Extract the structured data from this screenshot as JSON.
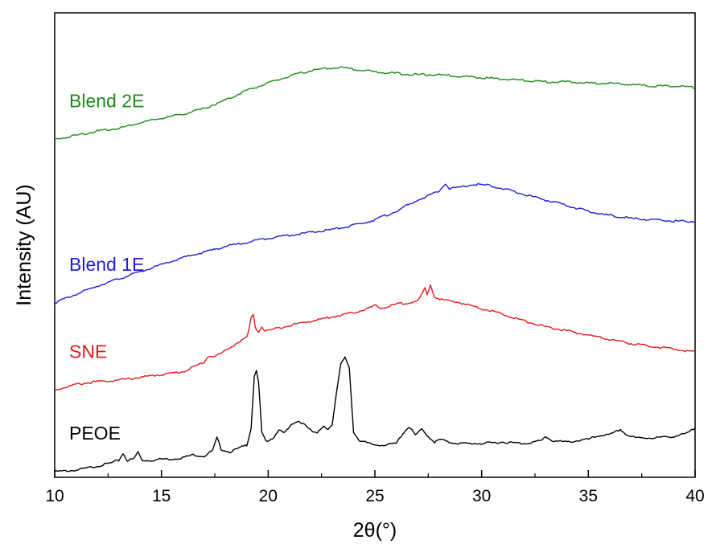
{
  "chart_data": {
    "type": "line",
    "title": "",
    "xlabel": "2θ(°)",
    "ylabel": "Intensity (AU)",
    "xlim": [
      10,
      40
    ],
    "xticks": [
      10,
      15,
      20,
      25,
      30,
      35,
      40
    ],
    "yticks_shown": false,
    "grid": false,
    "legend": "labels placed above each curve on the left",
    "series": [
      {
        "name": "PEOE",
        "color": "#000000",
        "points": [
          [
            10,
            0.04
          ],
          [
            11,
            0.05
          ],
          [
            12,
            0.08
          ],
          [
            12.6,
            0.1
          ],
          [
            13,
            0.12
          ],
          [
            13.2,
            0.17
          ],
          [
            13.4,
            0.12
          ],
          [
            13.7,
            0.13
          ],
          [
            13.9,
            0.18
          ],
          [
            14.1,
            0.12
          ],
          [
            14.5,
            0.12
          ],
          [
            15,
            0.13
          ],
          [
            15.5,
            0.13
          ],
          [
            16,
            0.14
          ],
          [
            16.5,
            0.16
          ],
          [
            17,
            0.15
          ],
          [
            17.4,
            0.19
          ],
          [
            17.6,
            0.28
          ],
          [
            17.8,
            0.2
          ],
          [
            18.2,
            0.18
          ],
          [
            18.7,
            0.21
          ],
          [
            19.0,
            0.23
          ],
          [
            19.2,
            0.35
          ],
          [
            19.35,
            0.72
          ],
          [
            19.45,
            0.76
          ],
          [
            19.55,
            0.68
          ],
          [
            19.7,
            0.32
          ],
          [
            19.9,
            0.25
          ],
          [
            20.2,
            0.27
          ],
          [
            20.5,
            0.34
          ],
          [
            20.8,
            0.32
          ],
          [
            21.1,
            0.37
          ],
          [
            21.4,
            0.4
          ],
          [
            21.7,
            0.38
          ],
          [
            22.0,
            0.33
          ],
          [
            22.3,
            0.31
          ],
          [
            22.6,
            0.37
          ],
          [
            22.8,
            0.34
          ],
          [
            23.0,
            0.38
          ],
          [
            23.2,
            0.6
          ],
          [
            23.4,
            0.8
          ],
          [
            23.6,
            0.85
          ],
          [
            23.8,
            0.78
          ],
          [
            24.0,
            0.32
          ],
          [
            24.3,
            0.26
          ],
          [
            24.7,
            0.24
          ],
          [
            25,
            0.23
          ],
          [
            25.5,
            0.23
          ],
          [
            26,
            0.24
          ],
          [
            26.3,
            0.31
          ],
          [
            26.6,
            0.36
          ],
          [
            26.9,
            0.3
          ],
          [
            27.2,
            0.34
          ],
          [
            27.5,
            0.29
          ],
          [
            27.8,
            0.25
          ],
          [
            28.1,
            0.27
          ],
          [
            28.4,
            0.25
          ],
          [
            29,
            0.24
          ],
          [
            30,
            0.24
          ],
          [
            31,
            0.25
          ],
          [
            32,
            0.24
          ],
          [
            32.8,
            0.26
          ],
          [
            33,
            0.29
          ],
          [
            33.3,
            0.26
          ],
          [
            34,
            0.25
          ],
          [
            35,
            0.27
          ],
          [
            35.6,
            0.3
          ],
          [
            36.0,
            0.3
          ],
          [
            36.5,
            0.34
          ],
          [
            36.8,
            0.3
          ],
          [
            37.2,
            0.28
          ],
          [
            38,
            0.28
          ],
          [
            39,
            0.29
          ],
          [
            39.6,
            0.31
          ],
          [
            40,
            0.35
          ]
        ]
      },
      {
        "name": "SNE",
        "color": "#e41a1c",
        "points": [
          [
            10,
            0.62
          ],
          [
            11,
            0.66
          ],
          [
            12,
            0.68
          ],
          [
            13,
            0.69
          ],
          [
            14,
            0.71
          ],
          [
            15,
            0.73
          ],
          [
            16,
            0.75
          ],
          [
            16.6,
            0.79
          ],
          [
            17.0,
            0.82
          ],
          [
            17.2,
            0.86
          ],
          [
            17.5,
            0.86
          ],
          [
            17.8,
            0.88
          ],
          [
            18.2,
            0.92
          ],
          [
            18.6,
            0.96
          ],
          [
            19.0,
            0.99
          ],
          [
            19.1,
            1.05
          ],
          [
            19.2,
            1.13
          ],
          [
            19.3,
            1.15
          ],
          [
            19.4,
            1.07
          ],
          [
            19.55,
            1.03
          ],
          [
            19.7,
            1.07
          ],
          [
            19.85,
            1.04
          ],
          [
            20.2,
            1.05
          ],
          [
            21,
            1.08
          ],
          [
            22,
            1.11
          ],
          [
            23,
            1.14
          ],
          [
            24,
            1.17
          ],
          [
            24.7,
            1.2
          ],
          [
            25.0,
            1.22
          ],
          [
            25.3,
            1.2
          ],
          [
            26,
            1.23
          ],
          [
            27,
            1.25
          ],
          [
            27.2,
            1.3
          ],
          [
            27.35,
            1.34
          ],
          [
            27.45,
            1.29
          ],
          [
            27.6,
            1.37
          ],
          [
            27.8,
            1.28
          ],
          [
            28.2,
            1.26
          ],
          [
            29,
            1.24
          ],
          [
            30,
            1.2
          ],
          [
            31,
            1.16
          ],
          [
            32,
            1.11
          ],
          [
            33,
            1.07
          ],
          [
            34,
            1.04
          ],
          [
            35,
            1.01
          ],
          [
            36,
            0.98
          ],
          [
            37,
            0.95
          ],
          [
            38,
            0.93
          ],
          [
            39,
            0.91
          ],
          [
            40,
            0.89
          ]
        ]
      },
      {
        "name": "Blend 1E",
        "color": "#1f1fd8",
        "points": [
          [
            10,
            1.24
          ],
          [
            11,
            1.3
          ],
          [
            12,
            1.36
          ],
          [
            13,
            1.41
          ],
          [
            14,
            1.46
          ],
          [
            15,
            1.51
          ],
          [
            16,
            1.56
          ],
          [
            17,
            1.6
          ],
          [
            18,
            1.64
          ],
          [
            19,
            1.67
          ],
          [
            20,
            1.7
          ],
          [
            21,
            1.72
          ],
          [
            22,
            1.74
          ],
          [
            23,
            1.76
          ],
          [
            24,
            1.79
          ],
          [
            25,
            1.83
          ],
          [
            26,
            1.89
          ],
          [
            26.5,
            1.93
          ],
          [
            27,
            1.97
          ],
          [
            27.5,
            2.0
          ],
          [
            28,
            2.03
          ],
          [
            28.3,
            2.09
          ],
          [
            28.5,
            2.05
          ],
          [
            29,
            2.06
          ],
          [
            29.5,
            2.08
          ],
          [
            30,
            2.08
          ],
          [
            30.5,
            2.07
          ],
          [
            31,
            2.05
          ],
          [
            32,
            2.01
          ],
          [
            33,
            1.97
          ],
          [
            34,
            1.93
          ],
          [
            35,
            1.89
          ],
          [
            36,
            1.86
          ],
          [
            37,
            1.84
          ],
          [
            38,
            1.83
          ],
          [
            39,
            1.82
          ],
          [
            40,
            1.82
          ]
        ]
      },
      {
        "name": "Blend 2E",
        "color": "#1d8a1d",
        "points": [
          [
            10,
            2.4
          ],
          [
            11,
            2.43
          ],
          [
            12,
            2.46
          ],
          [
            13,
            2.48
          ],
          [
            14,
            2.52
          ],
          [
            15,
            2.55
          ],
          [
            16,
            2.58
          ],
          [
            17,
            2.62
          ],
          [
            18,
            2.68
          ],
          [
            19,
            2.75
          ],
          [
            20,
            2.8
          ],
          [
            21,
            2.85
          ],
          [
            22,
            2.89
          ],
          [
            23,
            2.91
          ],
          [
            23.5,
            2.91
          ],
          [
            24,
            2.9
          ],
          [
            25,
            2.88
          ],
          [
            26,
            2.87
          ],
          [
            27,
            2.86
          ],
          [
            28,
            2.86
          ],
          [
            29,
            2.85
          ],
          [
            30,
            2.84
          ],
          [
            31,
            2.83
          ],
          [
            32,
            2.82
          ],
          [
            33,
            2.81
          ],
          [
            34,
            2.81
          ],
          [
            35,
            2.8
          ],
          [
            36,
            2.8
          ],
          [
            37,
            2.79
          ],
          [
            38,
            2.78
          ],
          [
            39,
            2.78
          ],
          [
            40,
            2.77
          ]
        ]
      }
    ]
  }
}
